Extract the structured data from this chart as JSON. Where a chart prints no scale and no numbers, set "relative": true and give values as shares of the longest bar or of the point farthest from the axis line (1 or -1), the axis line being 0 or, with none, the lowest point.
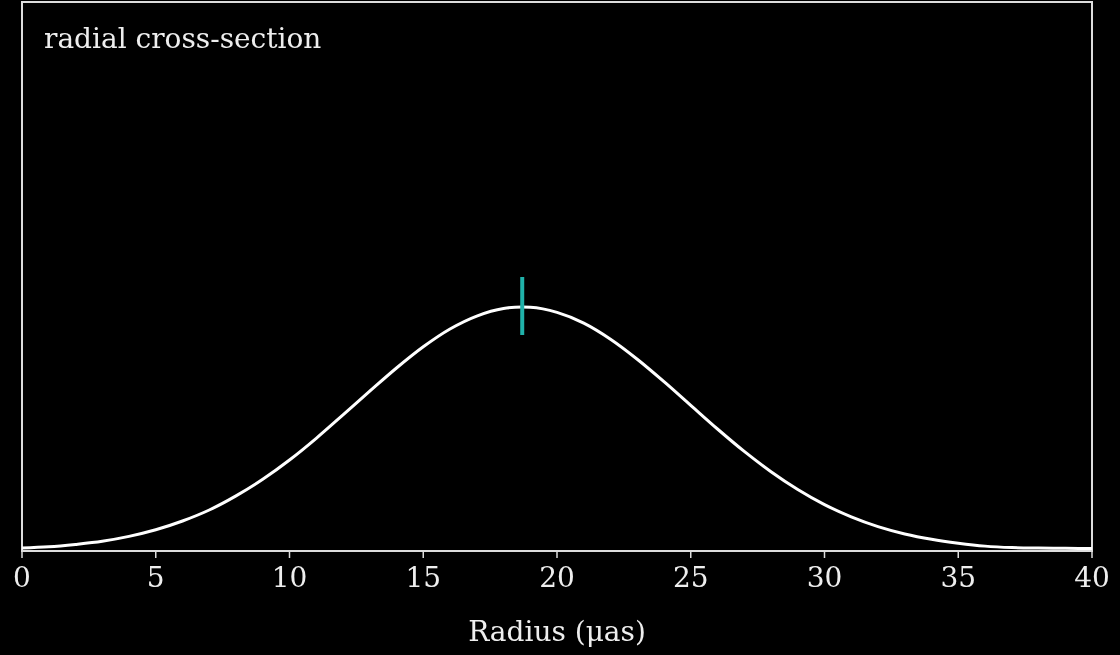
{
  "chart_data": {
    "type": "line",
    "title": "radial cross-section",
    "xlabel": "Radius (μas)",
    "relative": true,
    "xlim": [
      0,
      40
    ],
    "xticks": [
      0,
      5,
      10,
      15,
      20,
      25,
      30,
      35,
      40
    ],
    "marker": "none",
    "line_style": "solid",
    "x": [
      0,
      1,
      2,
      3,
      4,
      5,
      6,
      7,
      8,
      9,
      10,
      11,
      12,
      13,
      14,
      15,
      16,
      17,
      18,
      18.7,
      19,
      20,
      21,
      22,
      23,
      24,
      25,
      26,
      27,
      28,
      29,
      30,
      31,
      32,
      33,
      34,
      35,
      36,
      37,
      38,
      39,
      40
    ],
    "series": [
      {
        "color": "#ffffff",
        "values": [
          0.012,
          0.017,
          0.027,
          0.04,
          0.06,
          0.087,
          0.123,
          0.168,
          0.226,
          0.294,
          0.373,
          0.462,
          0.558,
          0.655,
          0.75,
          0.837,
          0.91,
          0.963,
          0.994,
          1,
          0.999,
          0.978,
          0.934,
          0.868,
          0.786,
          0.694,
          0.597,
          0.5,
          0.408,
          0.325,
          0.252,
          0.19,
          0.14,
          0.1,
          0.07,
          0.048,
          0.032,
          0.02,
          0.014,
          0.012,
          0.011,
          0.01
        ]
      }
    ],
    "ref_lines": [
      {
        "axis": "x",
        "value": 18.7,
        "color": "#20b2aa"
      }
    ]
  }
}
